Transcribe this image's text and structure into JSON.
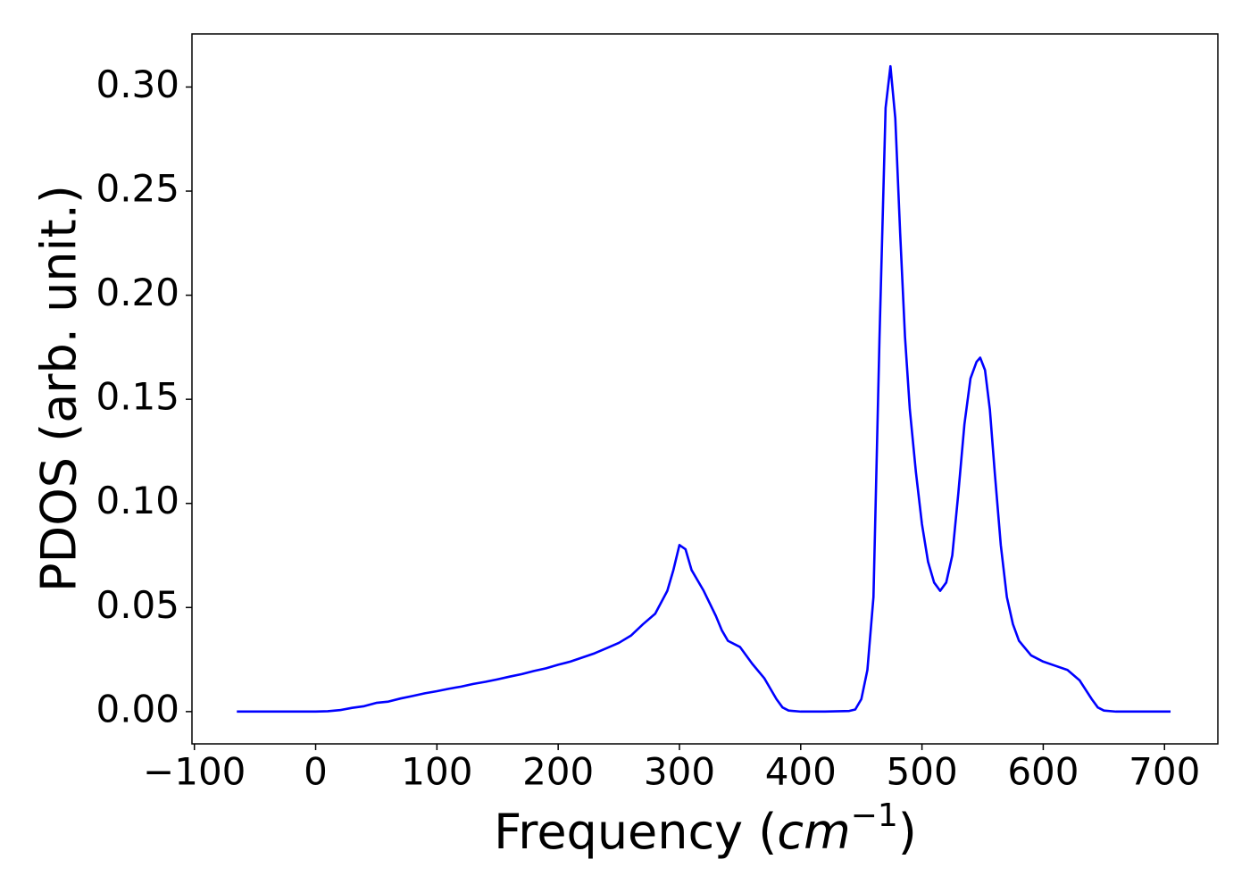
{
  "chart_data": {
    "type": "line",
    "ylabel": "PDOS (arb. unit.)",
    "xlabel": [
      "Frequency (",
      "cm",
      "−1",
      ")"
    ],
    "x": [
      -65,
      -40,
      -20,
      0,
      10,
      20,
      30,
      40,
      50,
      60,
      70,
      80,
      90,
      100,
      110,
      120,
      130,
      140,
      150,
      160,
      170,
      180,
      190,
      200,
      210,
      220,
      230,
      240,
      250,
      260,
      270,
      280,
      290,
      295,
      300,
      305,
      310,
      320,
      330,
      335,
      340,
      350,
      360,
      370,
      380,
      385,
      390,
      400,
      420,
      440,
      445,
      450,
      455,
      460,
      465,
      470,
      474,
      478,
      482,
      486,
      490,
      495,
      500,
      505,
      510,
      515,
      520,
      525,
      530,
      535,
      540,
      545,
      548,
      552,
      556,
      560,
      565,
      570,
      575,
      580,
      590,
      600,
      610,
      620,
      630,
      640,
      645,
      650,
      660,
      680,
      705
    ],
    "series": [
      {
        "name": "PDOS",
        "color": "#0000ff",
        "values": [
          0,
          0,
          0,
          0,
          0.0002,
          0.0007,
          0.0018,
          0.0026,
          0.0042,
          0.0048,
          0.0063,
          0.0075,
          0.0088,
          0.0098,
          0.011,
          0.012,
          0.0133,
          0.0143,
          0.0155,
          0.0168,
          0.018,
          0.0195,
          0.0208,
          0.0225,
          0.024,
          0.026,
          0.028,
          0.0305,
          0.033,
          0.0365,
          0.042,
          0.047,
          0.058,
          0.068,
          0.08,
          0.078,
          0.068,
          0.058,
          0.046,
          0.039,
          0.034,
          0.031,
          0.023,
          0.016,
          0.006,
          0.002,
          0.0005,
          0,
          0,
          0.0003,
          0.001,
          0.006,
          0.02,
          0.055,
          0.18,
          0.29,
          0.31,
          0.285,
          0.23,
          0.18,
          0.145,
          0.115,
          0.09,
          0.072,
          0.062,
          0.058,
          0.062,
          0.075,
          0.105,
          0.138,
          0.16,
          0.168,
          0.17,
          0.164,
          0.145,
          0.115,
          0.08,
          0.055,
          0.042,
          0.034,
          0.027,
          0.024,
          0.022,
          0.02,
          0.015,
          0.006,
          0.002,
          0.0005,
          0,
          0,
          0
        ]
      }
    ],
    "xlim": [
      -102,
      744
    ],
    "ylim": [
      -0.0155,
      0.3255
    ],
    "xticks": [
      {
        "value": -100,
        "label": "−100"
      },
      0,
      100,
      200,
      300,
      400,
      500,
      600,
      700
    ],
    "yticks": [
      {
        "value": 0,
        "label": "0.00"
      },
      {
        "value": 0.05,
        "label": "0.05"
      },
      {
        "value": 0.1,
        "label": "0.10"
      },
      {
        "value": 0.15,
        "label": "0.15"
      },
      {
        "value": 0.2,
        "label": "0.20"
      },
      {
        "value": 0.25,
        "label": "0.25"
      },
      {
        "value": 0.3,
        "label": "0.30"
      }
    ]
  }
}
